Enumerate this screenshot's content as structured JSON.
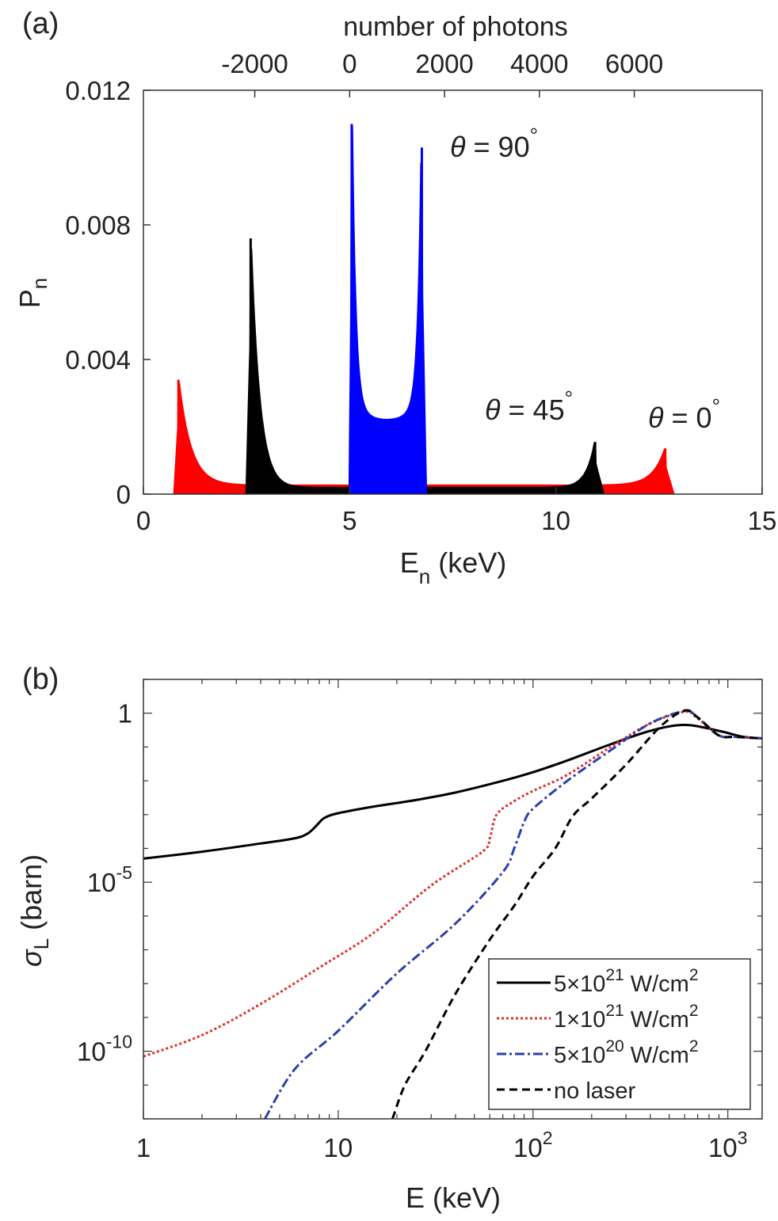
{
  "chart_data": [
    {
      "type": "scatter",
      "panel_label": "(a)",
      "xlabel": "E",
      "xlabel_sub": "n",
      "xlabel_unit": " (keV)",
      "ylabel": "P",
      "ylabel_sub": "n",
      "top_xlabel": "number of photons",
      "xlim": [
        0,
        15
      ],
      "ylim": [
        0,
        0.012
      ],
      "xticks": [
        0,
        5,
        10,
        15
      ],
      "yticks": [
        0,
        0.004,
        0.008,
        0.012
      ],
      "xtick_labels": [
        "0",
        "5",
        "10",
        "15"
      ],
      "ytick_labels": [
        "0",
        "0.004",
        "0.008",
        "0.012"
      ],
      "top_xticks": [
        -2000,
        0,
        2000,
        4000,
        6000
      ],
      "top_xtick_labels": [
        "-2000",
        "0",
        "2000",
        "4000",
        "6000"
      ],
      "top_photon_at_E0": 0,
      "top_photon_at_E5": 0,
      "top_photon_per_keV": 0,
      "series": [
        {
          "color": "#ff0000",
          "x_range": [
            0.75,
            12.85
          ],
          "left_edge_x": 0.85,
          "left_peak": 0.0034,
          "right_edge_x": 12.65,
          "right_peak": 0.00135,
          "floor": 0.00025
        },
        {
          "color": "#000000",
          "x_range": [
            2.5,
            11.15
          ],
          "left_edge_x": 2.6,
          "left_peak": 0.0076,
          "right_edge_x": 10.95,
          "right_peak": 0.00155,
          "floor": 0.00018
        },
        {
          "color": "#0000ff",
          "x_range": [
            5.0,
            6.85
          ],
          "left_edge_x": 5.05,
          "left_peak": 0.011,
          "right_edge_x": 6.75,
          "right_peak": 0.0103,
          "floor": 0.0022
        }
      ],
      "annotations": [
        {
          "symbol": "θ",
          "text": " = 90",
          "sup": "°",
          "color": "#0000ff"
        },
        {
          "symbol": "θ",
          "text": " = 45",
          "sup": "°",
          "color": "#000000"
        },
        {
          "symbol": "θ",
          "text": " = 0",
          "sup": "°",
          "color": "#ff0000"
        }
      ]
    },
    {
      "type": "line",
      "panel_label": "(b)",
      "xlabel": "E (keV)",
      "ylabel": "σ",
      "ylabel_sub": "L",
      "ylabel_unit": " (barn)",
      "xscale": "log",
      "yscale": "log",
      "xlim": [
        1,
        1500
      ],
      "ylim": [
        1e-12,
        10
      ],
      "xticks": [
        {
          "base": "1",
          "exp": "",
          "value": 1
        },
        {
          "base": "10",
          "exp": "",
          "value": 10
        },
        {
          "base": "10",
          "exp": "2",
          "value": 100
        },
        {
          "base": "10",
          "exp": "3",
          "value": 1000
        }
      ],
      "yticks": [
        {
          "base": "1",
          "exp": "",
          "value": 1
        },
        {
          "base": "10",
          "exp": "-5",
          "value": 1e-05
        },
        {
          "base": "10",
          "exp": "-10",
          "value": 1e-10
        }
      ],
      "legend_position": "bottom-right",
      "series": [
        {
          "label_pre": "5×10",
          "label_exp": "21",
          "label_post": " W/cm",
          "label_post_exp": "2",
          "color": "#000000",
          "dash": "",
          "width": 3,
          "x": [
            1,
            2,
            4,
            6,
            7,
            7.8,
            8.5,
            10,
            15,
            25,
            40,
            70,
            100,
            150,
            250,
            400,
            600,
            900,
            1200,
            1500
          ],
          "y": [
            5e-05,
            8e-05,
            0.00014,
            0.0002,
            0.00028,
            0.0005,
            0.0008,
            0.0011,
            0.0017,
            0.0027,
            0.0045,
            0.01,
            0.018,
            0.04,
            0.12,
            0.3,
            0.45,
            0.3,
            0.2,
            0.18
          ]
        },
        {
          "label_pre": "1×10",
          "label_exp": "21",
          "label_post": " W/cm",
          "label_post_exp": "2",
          "color": "#e0302a",
          "dash": "3,3",
          "width": 3,
          "x": [
            1,
            2,
            4,
            8,
            15,
            30,
            55,
            60,
            65,
            80,
            100,
            150,
            250,
            400,
            600,
            700,
            900,
            1100,
            1500
          ],
          "y": [
            7e-11,
            3e-10,
            2.5e-09,
            3e-08,
            3e-07,
            8e-06,
            8e-05,
            0.0002,
            0.001,
            0.0025,
            0.005,
            0.015,
            0.1,
            0.5,
            1.1,
            0.7,
            0.22,
            0.2,
            0.18
          ]
        },
        {
          "label_pre": "5×10",
          "label_exp": "20",
          "label_post": " W/cm",
          "label_post_exp": "2",
          "color": "#2b3fad",
          "dash": "12,4,3,4",
          "width": 3,
          "x": [
            4.2,
            6,
            10,
            20,
            40,
            70,
            80,
            90,
            100,
            150,
            250,
            400,
            600,
            700,
            900,
            1100,
            1500
          ],
          "y": [
            1e-12,
            3e-11,
            4e-10,
            2e-08,
            6e-07,
            2e-05,
            0.0001,
            0.0006,
            0.0015,
            0.01,
            0.08,
            0.5,
            1.15,
            0.75,
            0.22,
            0.2,
            0.18
          ]
        },
        {
          "label_pre": "",
          "label_exp": "",
          "label_post": "no laser",
          "label_post_exp": "",
          "color": "#000000",
          "dash": "10,6",
          "width": 3,
          "x": [
            19,
            22,
            28,
            40,
            60,
            80,
            100,
            130,
            160,
            200,
            300,
            450,
            600,
            700,
            900,
            1100,
            1500
          ],
          "y": [
            1e-12,
            1e-11,
            1e-10,
            5e-09,
            2e-07,
            2e-06,
            1.5e-05,
            0.0001,
            0.0009,
            0.003,
            0.03,
            0.4,
            1.2,
            0.75,
            0.22,
            0.2,
            0.18
          ]
        }
      ]
    }
  ]
}
